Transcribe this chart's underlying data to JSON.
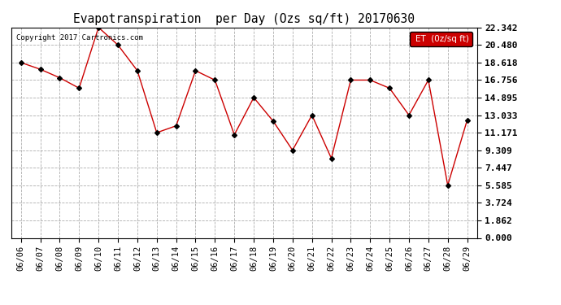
{
  "title": "Evapotranspiration  per Day (Ozs sq/ft) 20170630",
  "copyright_text": "Copyright 2017 Cartronics.com",
  "legend_label": "ET  (0z/sq ft)",
  "x_labels": [
    "06/06",
    "06/07",
    "06/08",
    "06/09",
    "06/10",
    "06/11",
    "06/12",
    "06/13",
    "06/14",
    "06/15",
    "06/16",
    "06/17",
    "06/18",
    "06/19",
    "06/20",
    "06/21",
    "06/22",
    "06/23",
    "06/24",
    "06/25",
    "06/26",
    "06/27",
    "06/28",
    "06/29"
  ],
  "y_vals": [
    18.618,
    17.9,
    17.0,
    15.9,
    22.342,
    20.48,
    17.756,
    11.171,
    11.9,
    17.756,
    16.756,
    10.95,
    14.895,
    12.4,
    9.309,
    13.033,
    8.447,
    16.756,
    16.756,
    15.895,
    13.033,
    16.756,
    5.585,
    12.5
  ],
  "y_ticks": [
    0.0,
    1.862,
    3.724,
    5.585,
    7.447,
    9.309,
    11.171,
    13.033,
    14.895,
    16.756,
    18.618,
    20.48,
    22.342
  ],
  "y_min": 0.0,
  "y_max": 22.342,
  "line_color": "#cc0000",
  "marker_color": "#000000",
  "bg_color": "#ffffff",
  "grid_color": "#999999",
  "legend_bg": "#cc0000",
  "legend_text_color": "#ffffff",
  "title_color": "#000000",
  "axis_label_color": "#000000"
}
